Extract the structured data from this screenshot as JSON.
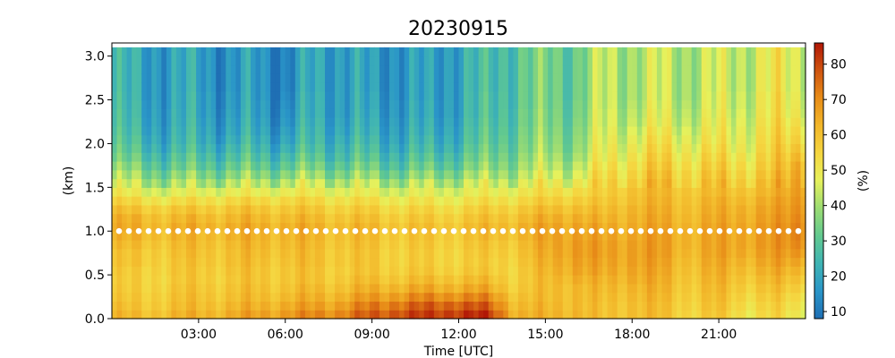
{
  "chart_data": {
    "type": "heatmap",
    "title": "20230915",
    "xlabel": "Time [UTC]",
    "ylabel": "(km)",
    "colorbar_label": "(%)",
    "x_unit": "hours UTC",
    "x_range": [
      0,
      24
    ],
    "y_range": [
      0,
      3.15
    ],
    "x_tick_values": [
      3,
      6,
      9,
      12,
      15,
      18,
      21
    ],
    "x_tick_labels": [
      "03:00",
      "06:00",
      "09:00",
      "12:00",
      "15:00",
      "18:00",
      "21:00"
    ],
    "y_tick_values": [
      0,
      0.5,
      1,
      1.5,
      2,
      2.5,
      3
    ],
    "y_tick_labels": [
      "0.0",
      "0.5",
      "1.0",
      "1.5",
      "2.0",
      "2.5",
      "3.0"
    ],
    "colorbar_range": [
      8,
      86
    ],
    "colorbar_tick_values": [
      10,
      20,
      30,
      40,
      50,
      60,
      70,
      80
    ],
    "colorbar_tick_labels": [
      "10",
      "20",
      "30",
      "40",
      "50",
      "60",
      "70",
      "80"
    ],
    "colormap": [
      "#1f6fb4",
      "#2a95c8",
      "#3fb4b4",
      "#62c98f",
      "#9bdc73",
      "#e6f15c",
      "#f5d640",
      "#f2b72a",
      "#e88d18",
      "#cf5410",
      "#b11706"
    ],
    "heights_km": [
      0.05,
      0.15,
      0.25,
      0.35,
      0.45,
      0.55,
      0.65,
      0.75,
      0.85,
      0.95,
      1.05,
      1.15,
      1.25,
      1.35,
      1.45,
      1.55,
      1.65,
      1.75,
      1.85,
      1.95,
      2.05,
      2.15,
      2.25,
      2.35,
      2.45,
      2.55,
      2.65,
      2.75,
      2.85,
      2.95,
      3.05
    ],
    "time_hours": [
      0.0,
      1.0,
      2.0,
      3.0,
      4.0,
      5.0,
      6.0,
      7.0,
      8.0,
      9.0,
      10.0,
      11.0,
      12.0,
      13.0,
      14.0,
      15.0,
      16.0,
      17.0,
      18.0,
      19.0,
      20.0,
      21.0,
      22.0,
      23.0,
      23.7
    ],
    "profiles_humidity_pct": [
      [
        62,
        60,
        58,
        57,
        56,
        57,
        58,
        58,
        60,
        62,
        64,
        63,
        60,
        55,
        50,
        44,
        40,
        36,
        32,
        30,
        28,
        27,
        26,
        26,
        25,
        25,
        24,
        24,
        24,
        24,
        24
      ],
      [
        60,
        58,
        57,
        56,
        56,
        56,
        58,
        58,
        60,
        62,
        63,
        62,
        58,
        53,
        47,
        42,
        37,
        33,
        29,
        26,
        24,
        22,
        21,
        20,
        20,
        19,
        19,
        19,
        19,
        19,
        19
      ],
      [
        62,
        60,
        59,
        58,
        57,
        58,
        58,
        59,
        60,
        62,
        63,
        61,
        58,
        52,
        46,
        40,
        35,
        30,
        27,
        24,
        22,
        21,
        20,
        20,
        19,
        19,
        19,
        19,
        19,
        19,
        19
      ],
      [
        63,
        61,
        60,
        59,
        58,
        58,
        59,
        60,
        61,
        62,
        64,
        62,
        58,
        53,
        47,
        41,
        36,
        31,
        28,
        25,
        23,
        22,
        21,
        20,
        20,
        20,
        19,
        19,
        19,
        19,
        19
      ],
      [
        64,
        62,
        60,
        59,
        58,
        59,
        60,
        60,
        61,
        63,
        64,
        62,
        59,
        54,
        48,
        42,
        36,
        31,
        27,
        24,
        21,
        19,
        18,
        17,
        16,
        16,
        15,
        15,
        15,
        15,
        15
      ],
      [
        66,
        63,
        61,
        60,
        59,
        59,
        60,
        61,
        62,
        63,
        64,
        62,
        59,
        54,
        48,
        42,
        36,
        31,
        27,
        24,
        22,
        20,
        19,
        18,
        18,
        17,
        17,
        17,
        17,
        17,
        17
      ],
      [
        68,
        65,
        62,
        60,
        59,
        59,
        60,
        61,
        62,
        63,
        64,
        62,
        59,
        55,
        49,
        43,
        37,
        31,
        27,
        23,
        20,
        18,
        16,
        15,
        14,
        13,
        12,
        12,
        12,
        12,
        12
      ],
      [
        70,
        66,
        63,
        61,
        59,
        59,
        60,
        60,
        61,
        62,
        63,
        61,
        58,
        54,
        49,
        44,
        38,
        33,
        29,
        26,
        24,
        23,
        22,
        21,
        21,
        21,
        20,
        20,
        20,
        20,
        20
      ],
      [
        72,
        68,
        64,
        61,
        59,
        58,
        59,
        59,
        60,
        61,
        62,
        60,
        57,
        53,
        48,
        43,
        37,
        32,
        28,
        26,
        24,
        22,
        21,
        20,
        20,
        20,
        20,
        20,
        20,
        20,
        20
      ],
      [
        76,
        72,
        67,
        63,
        60,
        58,
        58,
        58,
        59,
        60,
        61,
        59,
        56,
        52,
        47,
        42,
        36,
        31,
        27,
        24,
        22,
        20,
        19,
        18,
        17,
        17,
        16,
        16,
        16,
        16,
        16
      ],
      [
        80,
        75,
        69,
        64,
        60,
        58,
        57,
        57,
        58,
        59,
        60,
        58,
        55,
        51,
        46,
        41,
        35,
        30,
        27,
        24,
        22,
        21,
        20,
        19,
        19,
        18,
        18,
        18,
        18,
        18,
        18
      ],
      [
        80,
        76,
        70,
        64,
        60,
        57,
        56,
        56,
        57,
        58,
        59,
        57,
        54,
        50,
        46,
        41,
        35,
        30,
        26,
        23,
        21,
        19,
        18,
        17,
        17,
        16,
        16,
        16,
        16,
        16,
        16
      ],
      [
        83,
        78,
        71,
        65,
        61,
        58,
        57,
        57,
        58,
        59,
        60,
        58,
        55,
        51,
        47,
        43,
        38,
        33,
        30,
        27,
        25,
        24,
        23,
        22,
        22,
        22,
        22,
        22,
        22,
        22,
        22
      ],
      [
        82,
        76,
        70,
        64,
        60,
        57,
        56,
        57,
        58,
        60,
        61,
        59,
        56,
        52,
        48,
        44,
        39,
        35,
        32,
        30,
        28,
        27,
        26,
        25,
        25,
        25,
        24,
        24,
        24,
        24,
        24
      ],
      [
        64,
        62,
        60,
        58,
        57,
        57,
        58,
        59,
        60,
        62,
        63,
        61,
        58,
        54,
        50,
        46,
        42,
        39,
        37,
        35,
        34,
        33,
        32,
        32,
        31,
        31,
        31,
        31,
        31,
        31,
        31
      ],
      [
        62,
        61,
        60,
        60,
        60,
        61,
        62,
        63,
        64,
        65,
        65,
        63,
        60,
        56,
        52,
        48,
        44,
        41,
        39,
        37,
        36,
        35,
        34,
        34,
        33,
        33,
        33,
        33,
        33,
        33,
        33
      ],
      [
        64,
        63,
        63,
        63,
        65,
        67,
        68,
        69,
        69,
        68,
        67,
        65,
        62,
        58,
        54,
        50,
        46,
        43,
        40,
        38,
        37,
        36,
        35,
        34,
        34,
        33,
        33,
        33,
        33,
        33,
        33
      ],
      [
        58,
        58,
        59,
        60,
        61,
        63,
        64,
        65,
        65,
        64,
        63,
        61,
        59,
        57,
        55,
        53,
        51,
        49,
        47,
        46,
        45,
        44,
        43,
        43,
        42,
        42,
        42,
        42,
        42,
        42,
        42
      ],
      [
        62,
        62,
        63,
        64,
        66,
        67,
        68,
        68,
        68,
        67,
        66,
        65,
        64,
        62,
        61,
        59,
        57,
        55,
        53,
        51,
        49,
        47,
        45,
        44,
        43,
        42,
        42,
        42,
        42,
        42,
        42
      ],
      [
        60,
        60,
        61,
        62,
        63,
        64,
        65,
        66,
        66,
        66,
        65,
        64,
        63,
        62,
        61,
        60,
        58,
        56,
        54,
        52,
        50,
        48,
        46,
        45,
        44,
        43,
        43,
        43,
        43,
        43,
        43
      ],
      [
        56,
        57,
        58,
        59,
        60,
        61,
        62,
        63,
        64,
        64,
        64,
        63,
        62,
        61,
        60,
        58,
        57,
        55,
        53,
        51,
        49,
        47,
        45,
        44,
        43,
        42,
        42,
        42,
        42,
        42,
        42
      ],
      [
        58,
        59,
        60,
        61,
        62,
        63,
        64,
        65,
        65,
        65,
        65,
        64,
        63,
        62,
        60,
        58,
        56,
        54,
        52,
        50,
        48,
        47,
        46,
        45,
        44,
        44,
        43,
        43,
        43,
        43,
        43
      ],
      [
        52,
        54,
        56,
        58,
        60,
        62,
        64,
        66,
        67,
        67,
        67,
        66,
        65,
        63,
        61,
        59,
        57,
        55,
        53,
        51,
        50,
        49,
        48,
        47,
        46,
        46,
        45,
        45,
        45,
        45,
        45
      ],
      [
        54,
        55,
        57,
        59,
        61,
        63,
        65,
        66,
        67,
        67,
        67,
        66,
        65,
        64,
        62,
        60,
        58,
        56,
        55,
        54,
        53,
        52,
        51,
        50,
        50,
        50,
        49,
        49,
        49,
        49,
        49
      ],
      [
        50,
        52,
        54,
        57,
        60,
        63,
        66,
        69,
        71,
        72,
        72,
        71,
        70,
        69,
        68,
        67,
        66,
        65,
        62,
        59,
        56,
        54,
        52,
        50,
        49,
        48,
        47,
        47,
        47,
        47,
        47
      ]
    ],
    "dotted_line_km": 1.0
  }
}
